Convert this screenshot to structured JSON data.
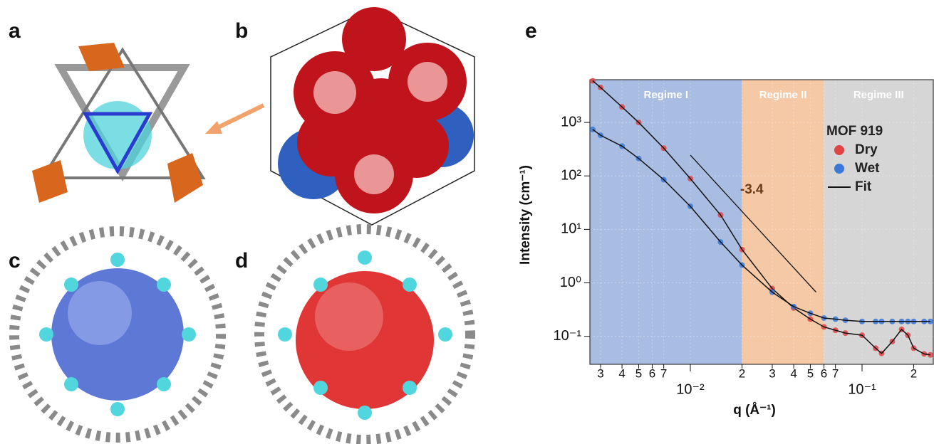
{
  "panel_labels": [
    "a",
    "b",
    "c",
    "d",
    "e"
  ],
  "chart_data": {
    "type": "scatter",
    "log_x": true,
    "log_y": true,
    "x_label": "q (Å⁻¹)",
    "y_label": "Intensity (cm⁻¹)",
    "xlim": [
      0.0026,
      0.26
    ],
    "ylim": [
      0.03,
      6300
    ],
    "xticks": [
      {
        "value": 0.003,
        "label": "3"
      },
      {
        "value": 0.004,
        "label": "4"
      },
      {
        "value": 0.005,
        "label": "5"
      },
      {
        "value": 0.006,
        "label": "6"
      },
      {
        "value": 0.007,
        "label": "7"
      },
      {
        "value": 0.01,
        "label": "10⁻²"
      },
      {
        "value": 0.02,
        "label": "2"
      },
      {
        "value": 0.03,
        "label": "3"
      },
      {
        "value": 0.04,
        "label": "4"
      },
      {
        "value": 0.05,
        "label": "5"
      },
      {
        "value": 0.06,
        "label": "6"
      },
      {
        "value": 0.07,
        "label": "7"
      },
      {
        "value": 0.1,
        "label": "10⁻¹"
      },
      {
        "value": 0.2,
        "label": "2"
      }
    ],
    "yticks": [
      {
        "value": 0.1,
        "label": "10⁻¹"
      },
      {
        "value": 1,
        "label": "10⁰"
      },
      {
        "value": 10,
        "label": "10¹"
      },
      {
        "value": 100,
        "label": "10²"
      },
      {
        "value": 1000,
        "label": "10³"
      }
    ],
    "regimes": [
      {
        "label": "Regime I",
        "range": [
          0.0026,
          0.02
        ],
        "color": "#a9bde3"
      },
      {
        "label": "Regime II",
        "range": [
          0.02,
          0.06
        ],
        "color": "#f6c9a6"
      },
      {
        "label": "Regime III",
        "range": [
          0.06,
          0.26
        ],
        "color": "#d6d6d6"
      }
    ],
    "legend_title": "MOF 919",
    "fit_label": "Fit",
    "fit_color": "#111111",
    "x": [
      0.0027,
      0.003,
      0.004,
      0.005,
      0.007,
      0.01,
      0.015,
      0.02,
      0.03,
      0.04,
      0.05,
      0.06,
      0.07,
      0.08,
      0.1,
      0.12,
      0.13,
      0.15,
      0.17,
      0.185,
      0.2,
      0.23,
      0.25
    ],
    "series": [
      {
        "name": "Dry",
        "color": "#e04545",
        "values": [
          6000,
          4500,
          1950,
          1000,
          330,
          89,
          18.6,
          4.2,
          0.78,
          0.34,
          0.21,
          0.15,
          0.13,
          0.115,
          0.105,
          0.06,
          0.048,
          0.08,
          0.135,
          0.105,
          0.06,
          0.047,
          0.045
        ]
      },
      {
        "name": "Wet",
        "color": "#3a78d8",
        "values": [
          740,
          575,
          360,
          212,
          85,
          27,
          5.8,
          2.15,
          0.67,
          0.36,
          0.27,
          0.22,
          0.21,
          0.2,
          0.19,
          0.19,
          0.19,
          0.19,
          0.19,
          0.19,
          0.19,
          0.19,
          0.19
        ]
      }
    ],
    "slope_line": {
      "x": [
        0.01,
        0.054
      ],
      "values": [
        245,
        0.67
      ]
    },
    "annotation": {
      "text": "-3.4",
      "x": 0.0195,
      "y": 55
    }
  }
}
